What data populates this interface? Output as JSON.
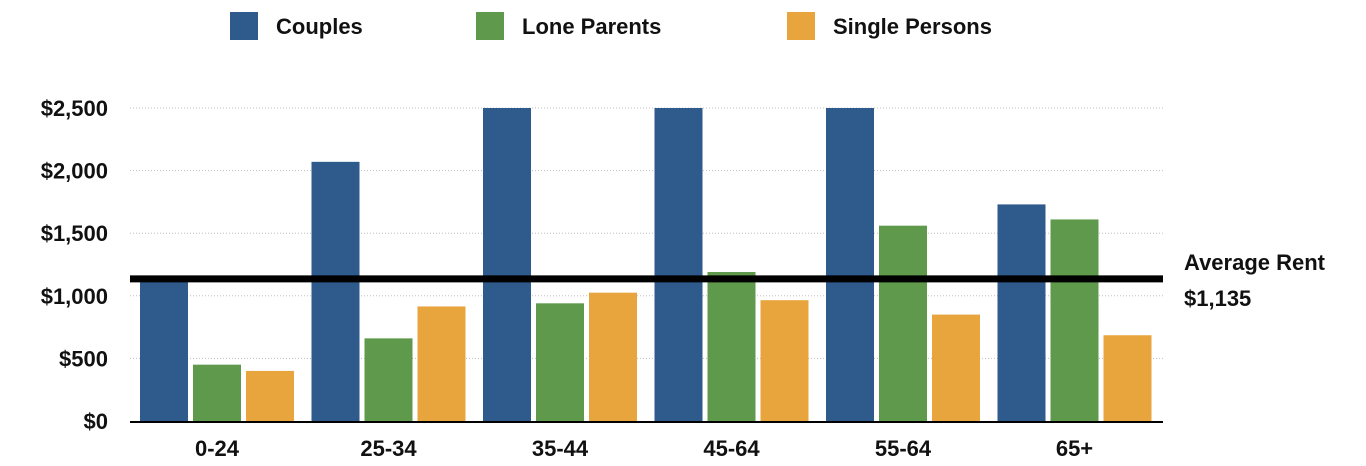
{
  "chart_data": {
    "type": "bar",
    "categories": [
      "0-24",
      "25-34",
      "35-44",
      "45-64",
      "55-64",
      "65+"
    ],
    "series": [
      {
        "name": "Couples",
        "color": "#2e5a8c",
        "values": [
          1135,
          2070,
          2500,
          2500,
          2500,
          1730
        ]
      },
      {
        "name": "Lone Parents",
        "color": "#5f9a4c",
        "values": [
          450,
          660,
          940,
          1190,
          1560,
          1610
        ]
      },
      {
        "name": "Single Persons",
        "color": "#e8a53e",
        "values": [
          400,
          915,
          1025,
          965,
          850,
          685
        ]
      }
    ],
    "yticks": [
      "$0",
      "$500",
      "$1,000",
      "$1,500",
      "$2,000",
      "$2,500"
    ],
    "ylim": [
      0,
      2500
    ],
    "grid": true,
    "legend_position": "top",
    "reference_line": {
      "value": 1135,
      "label_line1": "Average Rent",
      "label_line2": "$1,135",
      "color": "#000000"
    }
  }
}
